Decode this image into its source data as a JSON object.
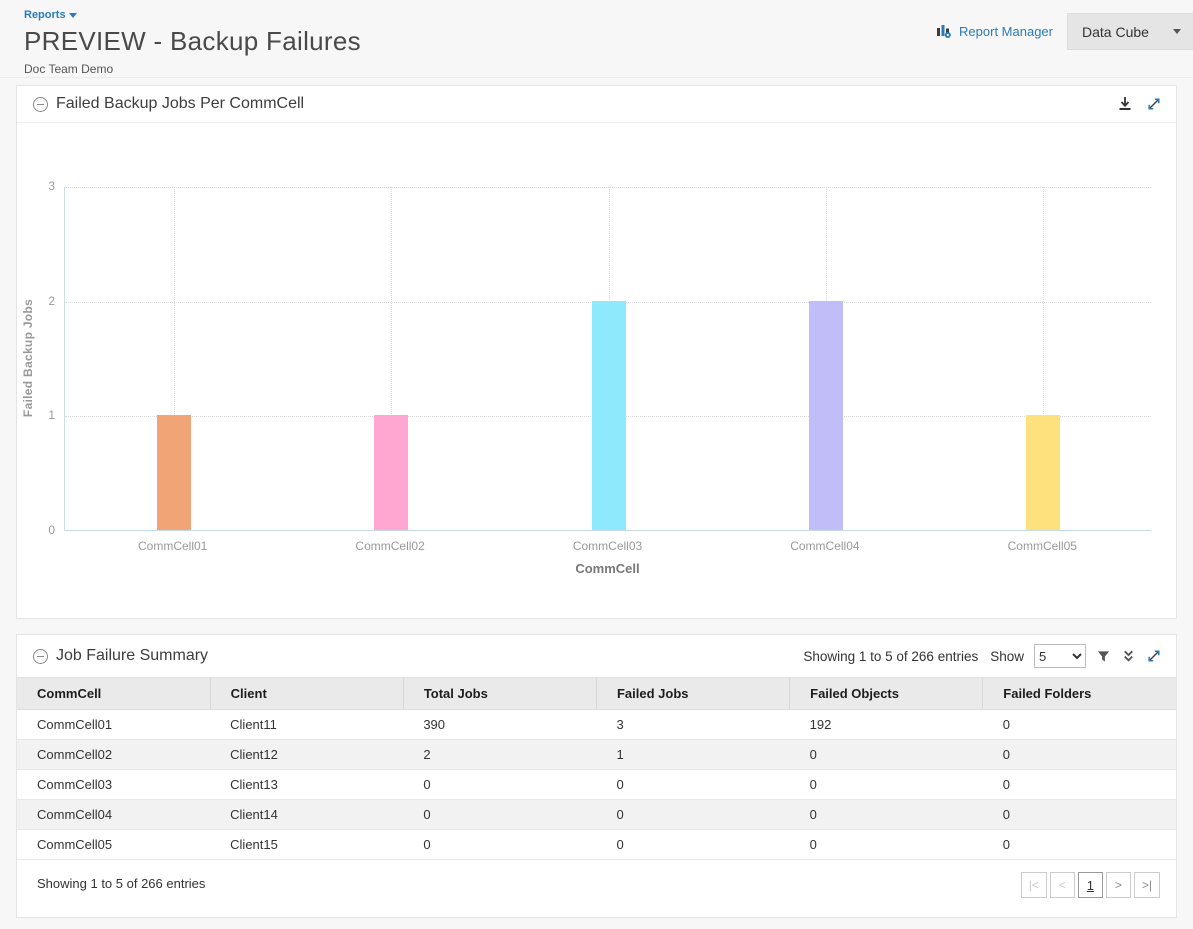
{
  "page": {
    "breadcrumb": "Reports",
    "title": "PREVIEW - Backup Failures",
    "subtitle": "Doc Team Demo",
    "report_manager_label": "Report Manager",
    "data_cube_label": "Data Cube"
  },
  "chart_panel": {
    "title": "Failed Backup Jobs Per CommCell"
  },
  "chart_data": {
    "type": "bar",
    "title": "Failed Backup Jobs Per CommCell",
    "categories": [
      "CommCell01",
      "CommCell02",
      "CommCell03",
      "CommCell04",
      "CommCell05"
    ],
    "values": [
      1,
      1,
      2,
      2,
      1
    ],
    "bar_colors": [
      "#f1a475",
      "#ffa7d1",
      "#8de9fb",
      "#c0bdf8",
      "#fde17c"
    ],
    "xlabel": "CommCell",
    "ylabel": "Failed Backup Jobs",
    "ylim": [
      0,
      3
    ],
    "yticks": [
      0,
      1,
      2,
      3
    ],
    "grid": "dotted horizontal and vertical",
    "legend": "none"
  },
  "table_panel": {
    "title": "Job Failure Summary",
    "entries_text": "Showing 1 to 5 of 266 entries",
    "show_label": "Show",
    "page_size": "5",
    "page_size_options": [
      "5"
    ],
    "columns": [
      "CommCell",
      "Client",
      "Total Jobs",
      "Failed Jobs",
      "Failed Objects",
      "Failed Folders"
    ],
    "rows": [
      [
        "CommCell01",
        "Client11",
        "390",
        "3",
        "192",
        "0"
      ],
      [
        "CommCell02",
        "Client12",
        "2",
        "1",
        "0",
        "0"
      ],
      [
        "CommCell03",
        "Client13",
        "0",
        "0",
        "0",
        "0"
      ],
      [
        "CommCell04",
        "Client14",
        "0",
        "0",
        "0",
        "0"
      ],
      [
        "CommCell05",
        "Client15",
        "0",
        "0",
        "0",
        "0"
      ]
    ],
    "footer_text": "Showing 1 to 5 of 266 entries",
    "pager": {
      "buttons": [
        {
          "label": "|<",
          "state": "disabled",
          "name": "first-page-button"
        },
        {
          "label": "<",
          "state": "disabled",
          "name": "prev-page-button"
        },
        {
          "label": "1",
          "state": "current",
          "name": "page-1-button"
        },
        {
          "label": ">",
          "state": "normal",
          "name": "next-page-button"
        },
        {
          "label": ">|",
          "state": "normal",
          "name": "last-page-button"
        }
      ]
    }
  }
}
